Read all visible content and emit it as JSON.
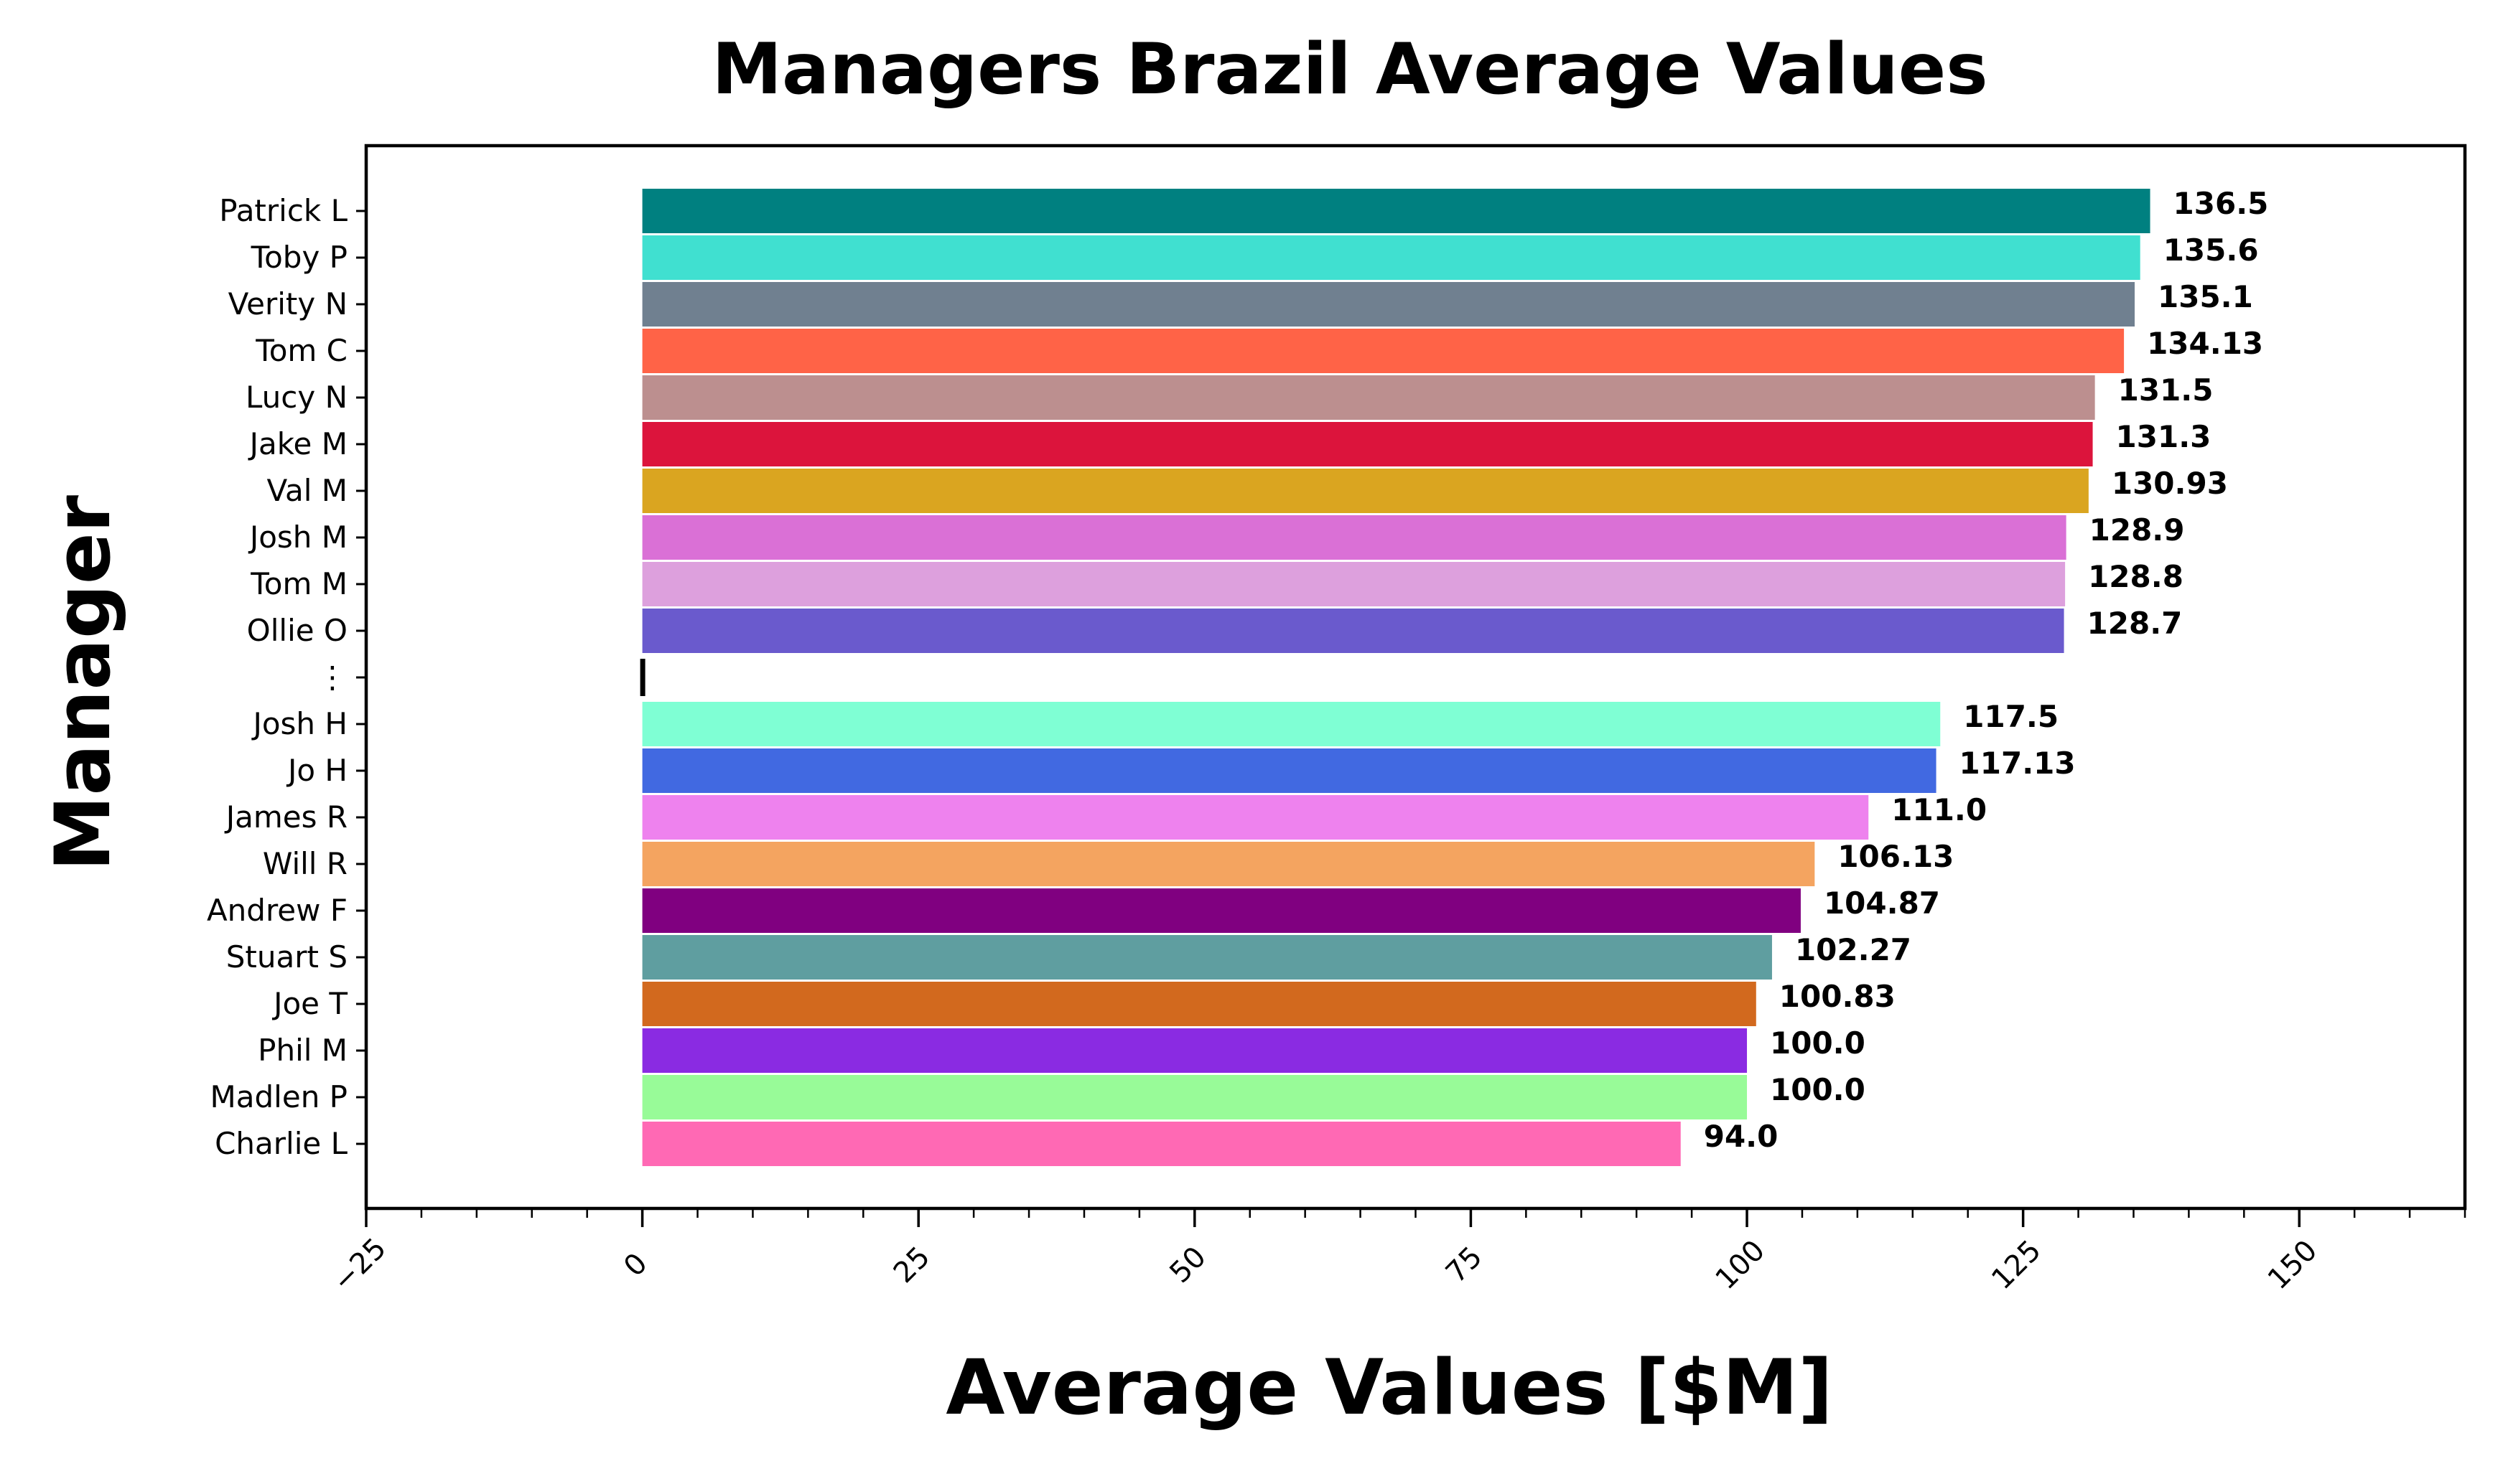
{
  "chart_data": {
    "type": "bar",
    "orientation": "horizontal",
    "title": "Managers Brazil Average Values",
    "xlabel": "Average Values [$M]",
    "ylabel": "Manager",
    "xlim": [
      -25,
      165
    ],
    "xticks": [
      -25,
      0,
      25,
      50,
      75,
      100,
      125,
      150
    ],
    "xtick_labels": [
      "−25",
      "0",
      "25",
      "50",
      "75",
      "100",
      "125",
      "150"
    ],
    "grid": false,
    "legend": "none",
    "separator_label": "⋮",
    "categories": [
      "Patrick L",
      "Toby P",
      "Verity N",
      "Tom C",
      "Lucy N",
      "Jake M",
      "Val M",
      "Josh M",
      "Tom M",
      "Ollie O",
      "⋮",
      "Josh H",
      "Jo H",
      "James R",
      "Will R",
      "Andrew F",
      "Stuart S",
      "Joe T",
      "Phil M",
      "Madlen P",
      "Charlie L"
    ],
    "bars": [
      {
        "label": "Patrick L",
        "value": 136.5,
        "value_label": "136.5",
        "color": "#008080"
      },
      {
        "label": "Toby P",
        "value": 135.6,
        "value_label": "135.6",
        "color": "#40E0D0"
      },
      {
        "label": "Verity N",
        "value": 135.1,
        "value_label": "135.1",
        "color": "#708090"
      },
      {
        "label": "Tom C",
        "value": 134.13,
        "value_label": "134.13",
        "color": "#FF6347"
      },
      {
        "label": "Lucy N",
        "value": 131.5,
        "value_label": "131.5",
        "color": "#BC8F8F"
      },
      {
        "label": "Jake M",
        "value": 131.3,
        "value_label": "131.3",
        "color": "#DC143C"
      },
      {
        "label": "Val M",
        "value": 130.93,
        "value_label": "130.93",
        "color": "#DAA520"
      },
      {
        "label": "Josh M",
        "value": 128.9,
        "value_label": "128.9",
        "color": "#DA70D6"
      },
      {
        "label": "Tom M",
        "value": 128.8,
        "value_label": "128.8",
        "color": "#DDA0DD"
      },
      {
        "label": "Ollie O",
        "value": 128.7,
        "value_label": "128.7",
        "color": "#6A5ACD"
      },
      {
        "label": "Josh H",
        "value": 117.5,
        "value_label": "117.5",
        "color": "#7FFFD4"
      },
      {
        "label": "Jo H",
        "value": 117.13,
        "value_label": "117.13",
        "color": "#4169E1"
      },
      {
        "label": "James R",
        "value": 111.0,
        "value_label": "111.0",
        "color": "#EE82EE"
      },
      {
        "label": "Will R",
        "value": 106.13,
        "value_label": "106.13",
        "color": "#F4A460"
      },
      {
        "label": "Andrew F",
        "value": 104.87,
        "value_label": "104.87",
        "color": "#800080"
      },
      {
        "label": "Stuart S",
        "value": 102.27,
        "value_label": "102.27",
        "color": "#5F9EA0"
      },
      {
        "label": "Joe T",
        "value": 100.83,
        "value_label": "100.83",
        "color": "#D2691E"
      },
      {
        "label": "Phil M",
        "value": 100.0,
        "value_label": "100.0",
        "color": "#8A2BE2"
      },
      {
        "label": "Madlen P",
        "value": 100.0,
        "value_label": "100.0",
        "color": "#98FB98"
      },
      {
        "label": "Charlie L",
        "value": 94.0,
        "value_label": "94.0",
        "color": "#FF69B4"
      }
    ]
  }
}
